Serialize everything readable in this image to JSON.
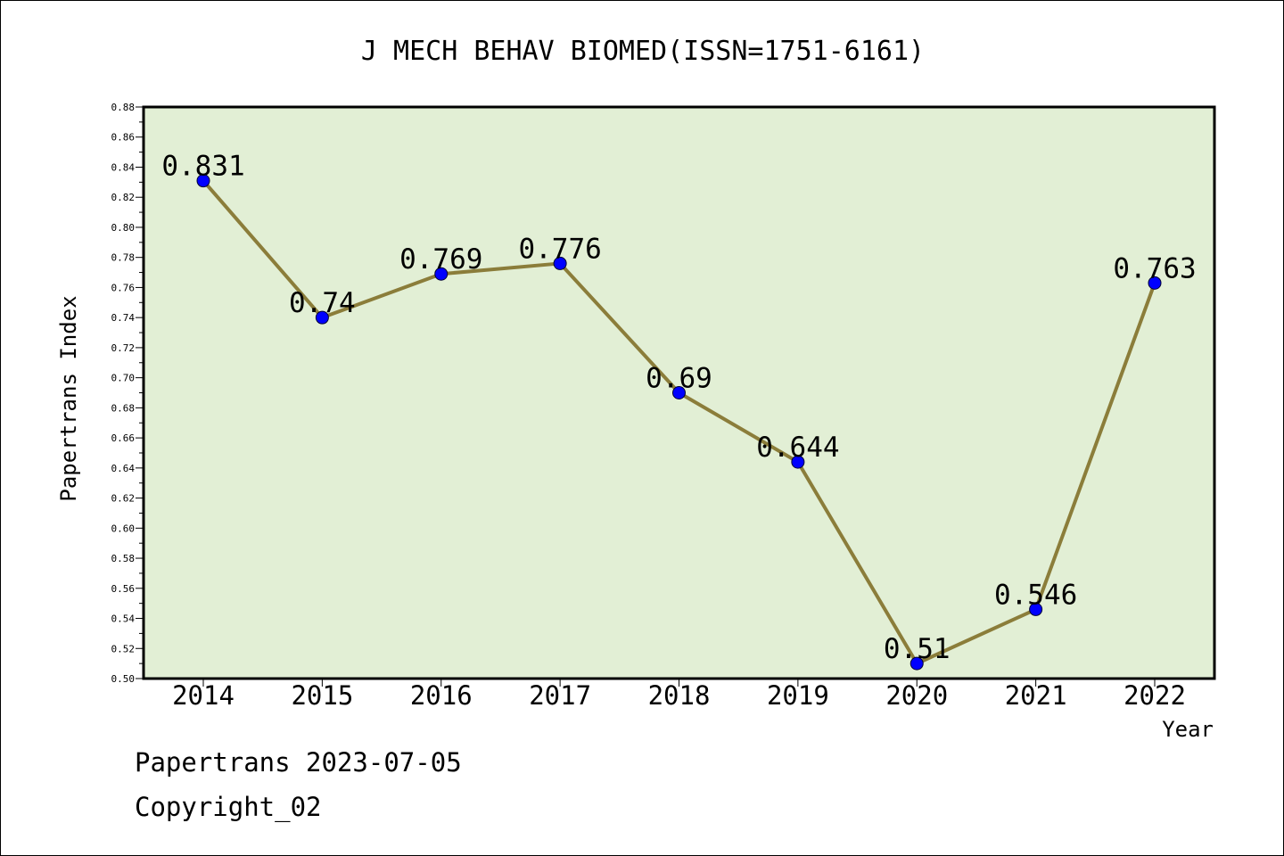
{
  "chart_data": {
    "type": "line",
    "title": "J MECH BEHAV BIOMED(ISSN=1751-6161)",
    "xlabel": "Year",
    "ylabel": "Papertrans Index",
    "categories": [
      "2014",
      "2015",
      "2016",
      "2017",
      "2018",
      "2019",
      "2020",
      "2021",
      "2022"
    ],
    "values": [
      0.831,
      0.74,
      0.769,
      0.776,
      0.69,
      0.644,
      0.51,
      0.546,
      0.763
    ],
    "value_labels": [
      "0.831",
      "0.74",
      "0.769",
      "0.776",
      "0.69",
      "0.644",
      "0.51",
      "0.546",
      "0.763"
    ],
    "ylim": [
      0.5,
      0.88
    ],
    "yticks": [
      "0.50",
      "0.52",
      "0.54",
      "0.56",
      "0.58",
      "0.60",
      "0.62",
      "0.64",
      "0.66",
      "0.68",
      "0.70",
      "0.72",
      "0.74",
      "0.76",
      "0.78",
      "0.80",
      "0.82",
      "0.84",
      "0.86",
      "0.88"
    ],
    "grid": false,
    "legend": "none",
    "colors": {
      "plot_background": "#e2efd5",
      "line": "#8b7d3a",
      "marker": "#0000ff",
      "frame": "#000000"
    }
  },
  "footer": {
    "line1": "Papertrans 2023-07-05",
    "line2": "Copyright_02"
  }
}
